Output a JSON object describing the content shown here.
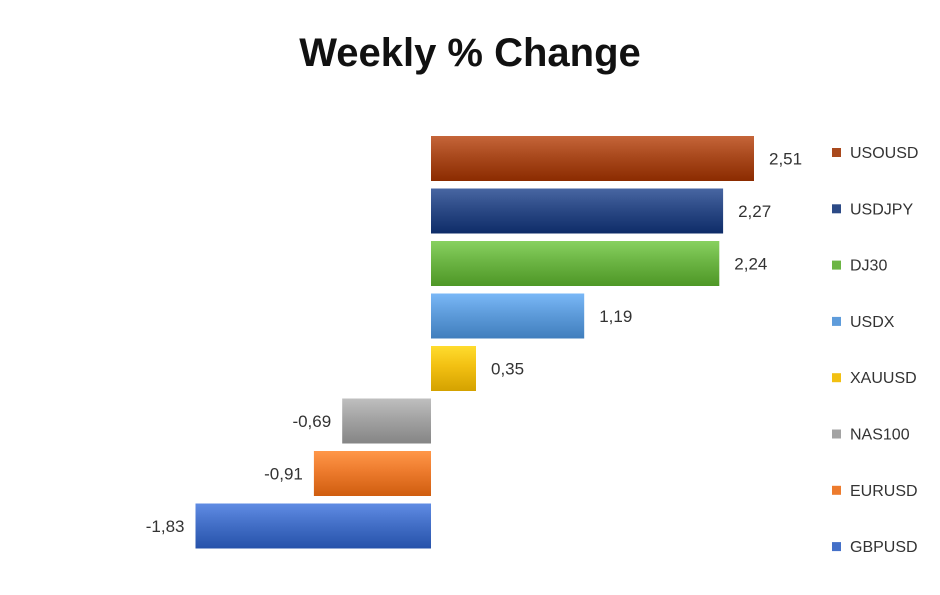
{
  "chart_data": {
    "type": "bar",
    "orientation": "horizontal",
    "title": "Weekly % Change",
    "categories": [
      "USOUSD",
      "USDJPY",
      "DJ30",
      "USDX",
      "XAUUSD",
      "NAS100",
      "EURUSD",
      "GBPUSD"
    ],
    "values": [
      2.51,
      2.27,
      2.24,
      1.19,
      0.35,
      -0.69,
      -0.91,
      -1.83
    ],
    "value_labels": [
      "2,51",
      "2,27",
      "2,24",
      "1,19",
      "0,35",
      "-0,69",
      "-0,91",
      "-1,83"
    ],
    "colors": [
      "#A9491D",
      "#2C4A86",
      "#6CB544",
      "#5E9CDB",
      "#F2C012",
      "#A3A3A3",
      "#ED7B2D",
      "#4470C8"
    ],
    "xlim": [
      -1.83,
      2.51
    ],
    "grid": false,
    "legend_position": "right"
  }
}
